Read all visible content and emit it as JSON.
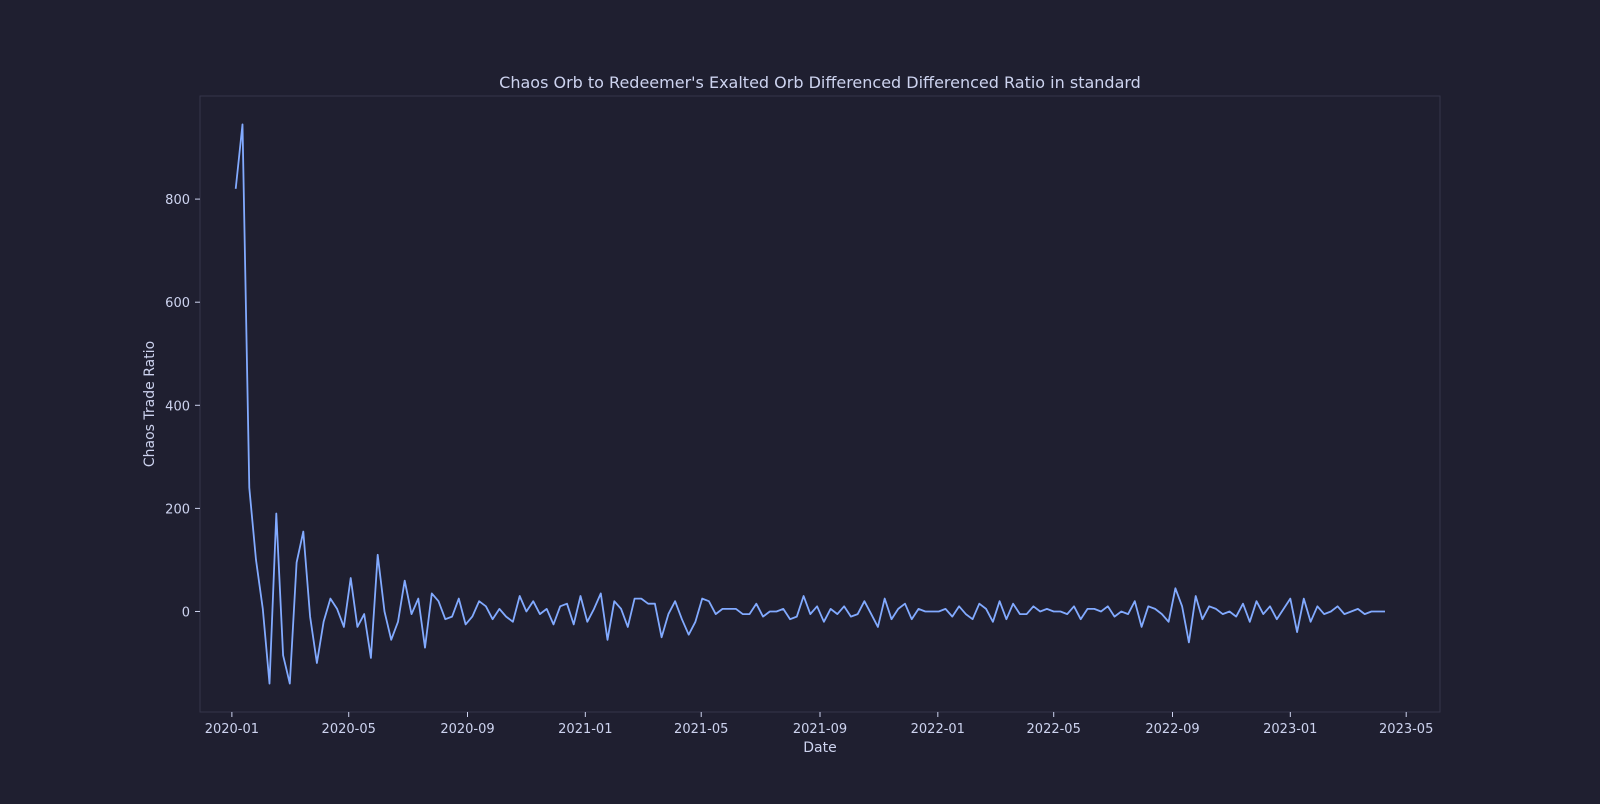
{
  "colors": {
    "background": "#1f1f30",
    "plot_border": "#34354a",
    "line": "#82aaff",
    "text": "#cdd3ef"
  },
  "chart_data": {
    "type": "line",
    "title": "Chaos Orb to Redeemer's Exalted Orb Differenced Differenced Ratio in standard",
    "xlabel": "Date",
    "ylabel": "Chaos Trade Ratio",
    "grid": false,
    "x_ticks": [
      "2020-01",
      "2020-05",
      "2020-09",
      "2021-01",
      "2021-05",
      "2021-09",
      "2022-01",
      "2022-05",
      "2022-09",
      "2023-01",
      "2023-05"
    ],
    "y_ticks": [
      0,
      200,
      400,
      600,
      800
    ],
    "xlim": [
      "2019-11-29",
      "2023-06-05"
    ],
    "ylim": [
      -195,
      1000
    ],
    "series": [
      {
        "color": "#82aaff",
        "x": [
          "2020-01-05",
          "2020-01-12",
          "2020-01-19",
          "2020-01-26",
          "2020-02-02",
          "2020-02-09",
          "2020-02-16",
          "2020-02-23",
          "2020-03-01",
          "2020-03-08",
          "2020-03-15",
          "2020-03-22",
          "2020-03-29",
          "2020-04-05",
          "2020-04-12",
          "2020-04-19",
          "2020-04-26",
          "2020-05-03",
          "2020-05-10",
          "2020-05-17",
          "2020-05-24",
          "2020-05-31",
          "2020-06-07",
          "2020-06-14",
          "2020-06-21",
          "2020-06-28",
          "2020-07-05",
          "2020-07-12",
          "2020-07-19",
          "2020-07-26",
          "2020-08-02",
          "2020-08-09",
          "2020-08-16",
          "2020-08-23",
          "2020-08-30",
          "2020-09-06",
          "2020-09-13",
          "2020-09-20",
          "2020-09-27",
          "2020-10-04",
          "2020-10-11",
          "2020-10-18",
          "2020-10-25",
          "2020-11-01",
          "2020-11-08",
          "2020-11-15",
          "2020-11-22",
          "2020-11-29",
          "2020-12-06",
          "2020-12-13",
          "2020-12-20",
          "2020-12-27",
          "2021-01-03",
          "2021-01-10",
          "2021-01-17",
          "2021-01-24",
          "2021-01-31",
          "2021-02-07",
          "2021-02-14",
          "2021-02-21",
          "2021-02-28",
          "2021-03-07",
          "2021-03-14",
          "2021-03-21",
          "2021-03-28",
          "2021-04-04",
          "2021-04-11",
          "2021-04-18",
          "2021-04-25",
          "2021-05-02",
          "2021-05-09",
          "2021-05-16",
          "2021-05-23",
          "2021-05-30",
          "2021-06-06",
          "2021-06-13",
          "2021-06-20",
          "2021-06-27",
          "2021-07-04",
          "2021-07-11",
          "2021-07-18",
          "2021-07-25",
          "2021-08-01",
          "2021-08-08",
          "2021-08-15",
          "2021-08-22",
          "2021-08-29",
          "2021-09-05",
          "2021-09-12",
          "2021-09-19",
          "2021-09-26",
          "2021-10-03",
          "2021-10-10",
          "2021-10-17",
          "2021-10-24",
          "2021-10-31",
          "2021-11-07",
          "2021-11-14",
          "2021-11-21",
          "2021-11-28",
          "2021-12-05",
          "2021-12-12",
          "2021-12-19",
          "2021-12-26",
          "2022-01-02",
          "2022-01-09",
          "2022-01-16",
          "2022-01-23",
          "2022-01-30",
          "2022-02-06",
          "2022-02-13",
          "2022-02-20",
          "2022-02-27",
          "2022-03-06",
          "2022-03-13",
          "2022-03-20",
          "2022-03-27",
          "2022-04-03",
          "2022-04-10",
          "2022-04-17",
          "2022-04-24",
          "2022-05-01",
          "2022-05-08",
          "2022-05-15",
          "2022-05-22",
          "2022-05-29",
          "2022-06-05",
          "2022-06-12",
          "2022-06-19",
          "2022-06-26",
          "2022-07-03",
          "2022-07-10",
          "2022-07-17",
          "2022-07-24",
          "2022-07-31",
          "2022-08-07",
          "2022-08-14",
          "2022-08-21",
          "2022-08-28",
          "2022-09-04",
          "2022-09-11",
          "2022-09-18",
          "2022-09-25",
          "2022-10-02",
          "2022-10-09",
          "2022-10-16",
          "2022-10-23",
          "2022-10-30",
          "2022-11-06",
          "2022-11-13",
          "2022-11-20",
          "2022-11-27",
          "2022-12-04",
          "2022-12-11",
          "2022-12-18",
          "2022-12-25",
          "2023-01-01",
          "2023-01-08",
          "2023-01-15",
          "2023-01-22",
          "2023-01-29",
          "2023-02-05",
          "2023-02-12",
          "2023-02-19",
          "2023-02-26",
          "2023-03-05",
          "2023-03-12",
          "2023-03-19",
          "2023-03-26",
          "2023-04-02",
          "2023-04-09"
        ],
        "y": [
          820,
          945,
          240,
          100,
          5,
          -140,
          190,
          -85,
          -140,
          95,
          155,
          -10,
          -100,
          -20,
          25,
          5,
          -30,
          65,
          -30,
          -5,
          -90,
          110,
          0,
          -55,
          -20,
          60,
          -5,
          25,
          -70,
          35,
          20,
          -15,
          -10,
          25,
          -25,
          -10,
          20,
          10,
          -15,
          5,
          -10,
          -20,
          30,
          0,
          20,
          -5,
          5,
          -25,
          10,
          15,
          -25,
          30,
          -20,
          5,
          35,
          -55,
          20,
          5,
          -30,
          25,
          25,
          15,
          15,
          -50,
          -5,
          20,
          -15,
          -45,
          -20,
          25,
          20,
          -5,
          5,
          5,
          5,
          -5,
          -5,
          15,
          -10,
          0,
          0,
          5,
          -15,
          -10,
          30,
          -5,
          10,
          -20,
          5,
          -5,
          10,
          -10,
          -5,
          20,
          -5,
          -30,
          25,
          -15,
          5,
          15,
          -15,
          5,
          0,
          0,
          0,
          5,
          -10,
          10,
          -5,
          -15,
          15,
          5,
          -20,
          20,
          -15,
          15,
          -5,
          -5,
          10,
          0,
          5,
          0,
          0,
          -5,
          10,
          -15,
          5,
          5,
          0,
          10,
          -10,
          0,
          -5,
          20,
          -30,
          10,
          5,
          -5,
          -20,
          45,
          10,
          -60,
          30,
          -15,
          10,
          5,
          -5,
          0,
          -10,
          15,
          -20,
          20,
          -5,
          10,
          -15,
          5,
          25,
          -40,
          25,
          -20,
          10,
          -5,
          0,
          10,
          -5,
          0,
          5,
          -5,
          0,
          0,
          0
        ]
      }
    ]
  }
}
